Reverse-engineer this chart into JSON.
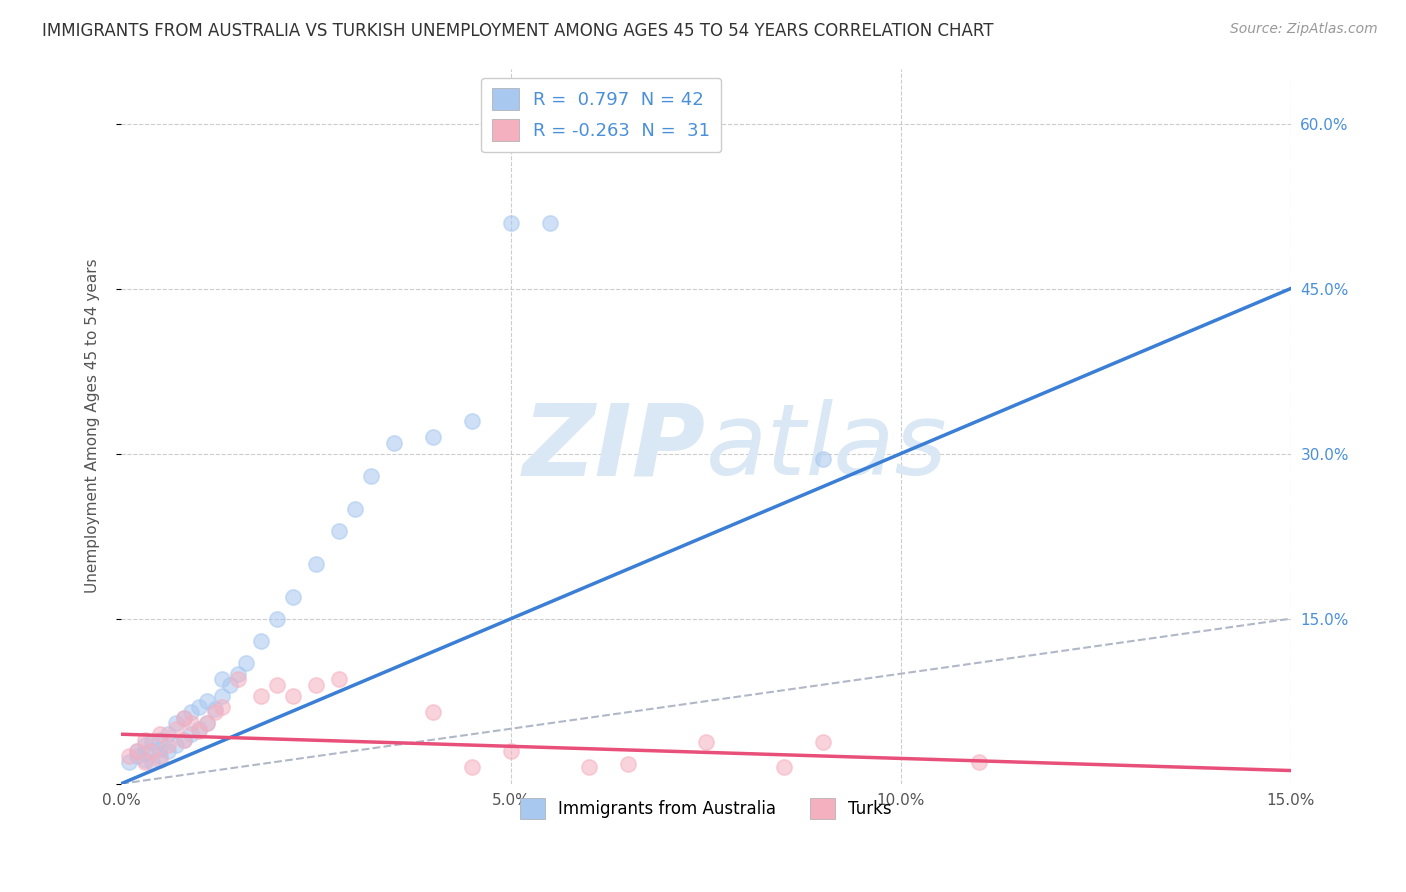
{
  "title": "IMMIGRANTS FROM AUSTRALIA VS TURKISH UNEMPLOYMENT AMONG AGES 45 TO 54 YEARS CORRELATION CHART",
  "source": "Source: ZipAtlas.com",
  "ylabel": "Unemployment Among Ages 45 to 54 years",
  "xlim": [
    0.0,
    0.15
  ],
  "ylim": [
    0.0,
    0.65
  ],
  "legend_r1": "R =  0.797  N = 42",
  "legend_r2": "R = -0.263  N =  31",
  "legend_label1": "Immigrants from Australia",
  "legend_label2": "Turks",
  "color_blue": "#a8c8f0",
  "color_pink": "#f5b0c0",
  "color_blue_line": "#3a7fd5",
  "color_pink_line": "#e8507a",
  "color_diag": "#b0b8c8",
  "watermark_zip": "ZIP",
  "watermark_atlas": "atlas",
  "watermark_color": "#dae8f5",
  "background": "#ffffff",
  "grid_color": "#cccccc",
  "aus_x": [
    0.001,
    0.002,
    0.002,
    0.003,
    0.003,
    0.003,
    0.004,
    0.004,
    0.005,
    0.005,
    0.005,
    0.006,
    0.006,
    0.007,
    0.007,
    0.008,
    0.008,
    0.009,
    0.009,
    0.01,
    0.01,
    0.011,
    0.011,
    0.012,
    0.013,
    0.013,
    0.014,
    0.015,
    0.016,
    0.018,
    0.02,
    0.022,
    0.025,
    0.028,
    0.03,
    0.032,
    0.035,
    0.04,
    0.045,
    0.05,
    0.055,
    0.09
  ],
  "aus_y": [
    0.02,
    0.025,
    0.03,
    0.022,
    0.028,
    0.035,
    0.02,
    0.038,
    0.025,
    0.032,
    0.04,
    0.03,
    0.045,
    0.035,
    0.055,
    0.04,
    0.06,
    0.045,
    0.065,
    0.05,
    0.07,
    0.055,
    0.075,
    0.068,
    0.08,
    0.095,
    0.09,
    0.1,
    0.11,
    0.13,
    0.15,
    0.17,
    0.2,
    0.23,
    0.25,
    0.28,
    0.31,
    0.315,
    0.33,
    0.51,
    0.51,
    0.295
  ],
  "turks_x": [
    0.001,
    0.002,
    0.003,
    0.003,
    0.004,
    0.005,
    0.005,
    0.006,
    0.007,
    0.008,
    0.008,
    0.009,
    0.01,
    0.011,
    0.012,
    0.013,
    0.015,
    0.018,
    0.02,
    0.022,
    0.025,
    0.028,
    0.04,
    0.045,
    0.05,
    0.06,
    0.065,
    0.075,
    0.085,
    0.09,
    0.11
  ],
  "turks_y": [
    0.025,
    0.03,
    0.02,
    0.04,
    0.03,
    0.022,
    0.045,
    0.035,
    0.05,
    0.04,
    0.06,
    0.055,
    0.048,
    0.055,
    0.065,
    0.07,
    0.095,
    0.08,
    0.09,
    0.08,
    0.09,
    0.095,
    0.065,
    0.015,
    0.03,
    0.015,
    0.018,
    0.038,
    0.015,
    0.038,
    0.02
  ],
  "blue_line_x": [
    0.0,
    0.15
  ],
  "blue_line_y": [
    0.0,
    0.45
  ],
  "pink_line_x": [
    0.0,
    0.15
  ],
  "pink_line_y": [
    0.045,
    0.012
  ]
}
